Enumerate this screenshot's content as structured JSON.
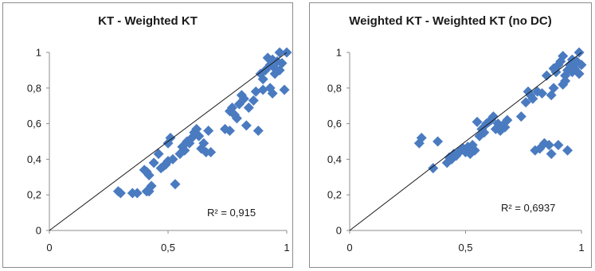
{
  "chart_data": [
    {
      "type": "scatter",
      "title": "KT - Weighted KT",
      "xlim": [
        0,
        1
      ],
      "ylim": [
        0,
        1
      ],
      "x_ticks": [
        "0",
        "0,5",
        "1"
      ],
      "y_ticks": [
        "0",
        "0,2",
        "0,4",
        "0,6",
        "0,8",
        "1"
      ],
      "grid": false,
      "marker": "diamond",
      "marker_color": "#4a7bc0",
      "trendline": [
        [
          0,
          0
        ],
        [
          1,
          1
        ]
      ],
      "annotation": "R² = 0,915",
      "points": [
        [
          0.29,
          0.22
        ],
        [
          0.3,
          0.21
        ],
        [
          0.35,
          0.21
        ],
        [
          0.37,
          0.21
        ],
        [
          0.41,
          0.22
        ],
        [
          0.42,
          0.22
        ],
        [
          0.43,
          0.25
        ],
        [
          0.41,
          0.33
        ],
        [
          0.42,
          0.31
        ],
        [
          0.4,
          0.34
        ],
        [
          0.44,
          0.38
        ],
        [
          0.46,
          0.43
        ],
        [
          0.47,
          0.35
        ],
        [
          0.48,
          0.36
        ],
        [
          0.49,
          0.37
        ],
        [
          0.5,
          0.39
        ],
        [
          0.5,
          0.49
        ],
        [
          0.51,
          0.52
        ],
        [
          0.52,
          0.4
        ],
        [
          0.53,
          0.26
        ],
        [
          0.55,
          0.43
        ],
        [
          0.56,
          0.47
        ],
        [
          0.57,
          0.45
        ],
        [
          0.58,
          0.5
        ],
        [
          0.59,
          0.49
        ],
        [
          0.6,
          0.52
        ],
        [
          0.61,
          0.55
        ],
        [
          0.62,
          0.57
        ],
        [
          0.63,
          0.53
        ],
        [
          0.64,
          0.46
        ],
        [
          0.65,
          0.49
        ],
        [
          0.66,
          0.44
        ],
        [
          0.67,
          0.56
        ],
        [
          0.68,
          0.44
        ],
        [
          0.74,
          0.57
        ],
        [
          0.76,
          0.56
        ],
        [
          0.76,
          0.67
        ],
        [
          0.77,
          0.69
        ],
        [
          0.78,
          0.65
        ],
        [
          0.79,
          0.63
        ],
        [
          0.8,
          0.71
        ],
        [
          0.81,
          0.76
        ],
        [
          0.82,
          0.74
        ],
        [
          0.83,
          0.59
        ],
        [
          0.84,
          0.69
        ],
        [
          0.86,
          0.73
        ],
        [
          0.87,
          0.78
        ],
        [
          0.88,
          0.56
        ],
        [
          0.89,
          0.88
        ],
        [
          0.9,
          0.79
        ],
        [
          0.9,
          0.85
        ],
        [
          0.91,
          0.9
        ],
        [
          0.92,
          0.97
        ],
        [
          0.93,
          0.8
        ],
        [
          0.93,
          0.93
        ],
        [
          0.94,
          0.77
        ],
        [
          0.95,
          0.88
        ],
        [
          0.96,
          0.95
        ],
        [
          0.97,
          0.9
        ],
        [
          0.97,
          1.0
        ],
        [
          0.98,
          0.94
        ],
        [
          0.99,
          0.79
        ],
        [
          1.0,
          1.0
        ],
        [
          0.94,
          0.96
        ],
        [
          0.95,
          0.91
        ]
      ]
    },
    {
      "type": "scatter",
      "title": "Weighted KT - Weighted KT (no DC)",
      "xlim": [
        0,
        1
      ],
      "ylim": [
        0,
        1
      ],
      "x_ticks": [
        "0",
        "0,5",
        "1"
      ],
      "y_ticks": [
        "0",
        "0,2",
        "0,4",
        "0,6",
        "0,8",
        "1"
      ],
      "grid": false,
      "marker": "diamond",
      "marker_color": "#4a7bc0",
      "trendline": [
        [
          0,
          0
        ],
        [
          1,
          1
        ]
      ],
      "annotation": "R² = 0,6937",
      "points": [
        [
          0.3,
          0.49
        ],
        [
          0.31,
          0.52
        ],
        [
          0.36,
          0.35
        ],
        [
          0.38,
          0.5
        ],
        [
          0.42,
          0.38
        ],
        [
          0.43,
          0.41
        ],
        [
          0.44,
          0.4
        ],
        [
          0.45,
          0.43
        ],
        [
          0.46,
          0.42
        ],
        [
          0.47,
          0.44
        ],
        [
          0.48,
          0.45
        ],
        [
          0.49,
          0.46
        ],
        [
          0.5,
          0.44
        ],
        [
          0.51,
          0.47
        ],
        [
          0.52,
          0.43
        ],
        [
          0.53,
          0.48
        ],
        [
          0.54,
          0.45
        ],
        [
          0.55,
          0.61
        ],
        [
          0.56,
          0.53
        ],
        [
          0.57,
          0.57
        ],
        [
          0.58,
          0.55
        ],
        [
          0.59,
          0.6
        ],
        [
          0.6,
          0.61
        ],
        [
          0.61,
          0.62
        ],
        [
          0.62,
          0.64
        ],
        [
          0.63,
          0.57
        ],
        [
          0.64,
          0.6
        ],
        [
          0.65,
          0.56
        ],
        [
          0.66,
          0.59
        ],
        [
          0.67,
          0.58
        ],
        [
          0.68,
          0.62
        ],
        [
          0.74,
          0.64
        ],
        [
          0.76,
          0.72
        ],
        [
          0.77,
          0.78
        ],
        [
          0.78,
          0.76
        ],
        [
          0.79,
          0.74
        ],
        [
          0.8,
          0.45
        ],
        [
          0.81,
          0.78
        ],
        [
          0.82,
          0.46
        ],
        [
          0.83,
          0.77
        ],
        [
          0.84,
          0.49
        ],
        [
          0.85,
          0.87
        ],
        [
          0.86,
          0.48
        ],
        [
          0.87,
          0.43
        ],
        [
          0.87,
          0.76
        ],
        [
          0.88,
          0.91
        ],
        [
          0.88,
          0.8
        ],
        [
          0.89,
          0.89
        ],
        [
          0.9,
          0.93
        ],
        [
          0.9,
          0.48
        ],
        [
          0.91,
          0.95
        ],
        [
          0.92,
          0.82
        ],
        [
          0.92,
          0.98
        ],
        [
          0.93,
          0.87
        ],
        [
          0.94,
          0.9
        ],
        [
          0.94,
          0.45
        ],
        [
          0.95,
          0.93
        ],
        [
          0.96,
          0.89
        ],
        [
          0.97,
          0.91
        ],
        [
          0.98,
          0.95
        ],
        [
          0.99,
          0.88
        ],
        [
          1.0,
          0.93
        ],
        [
          0.99,
          1.0
        ],
        [
          0.96,
          0.96
        ],
        [
          0.93,
          0.84
        ]
      ]
    }
  ]
}
